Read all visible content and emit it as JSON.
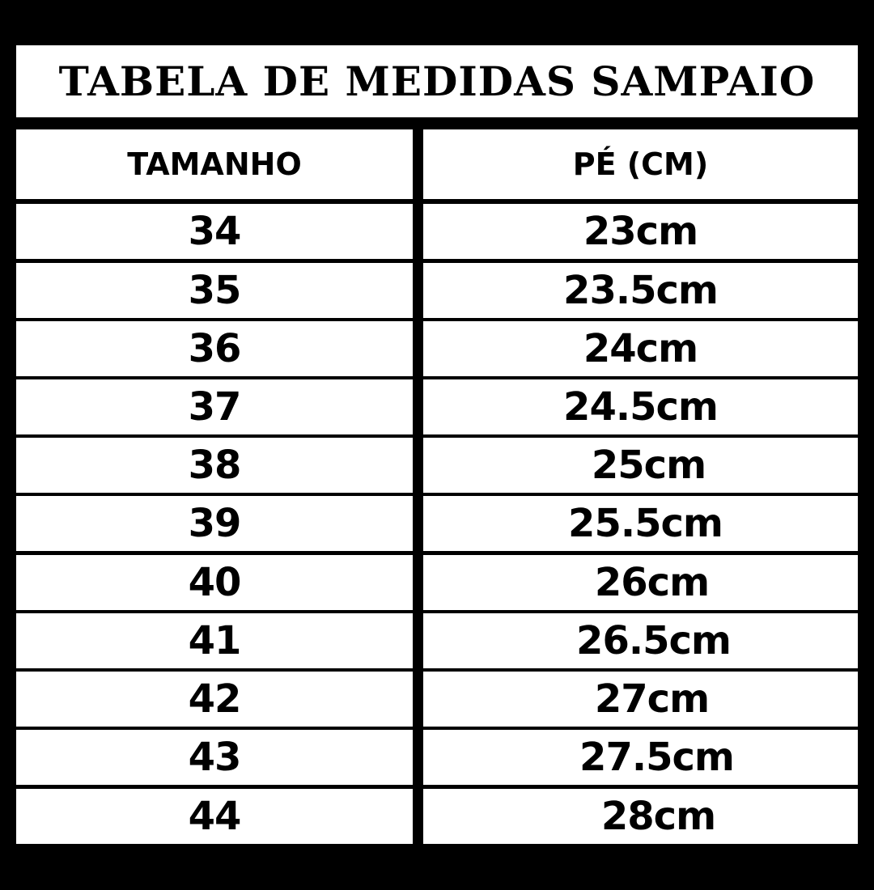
{
  "title": "TABELA DE MEDIDAS SAMPAIO",
  "columns": [
    "TAMANHO",
    "PÉ (CM)"
  ],
  "rows": [
    {
      "size": "34",
      "foot": "23cm"
    },
    {
      "size": "35",
      "foot": "23.5cm"
    },
    {
      "size": "36",
      "foot": "24cm"
    },
    {
      "size": "37",
      "foot": "24.5cm"
    },
    {
      "size": "38",
      "foot": "25cm"
    },
    {
      "size": "39",
      "foot": "25.5cm"
    },
    {
      "size": "40",
      "foot": "26cm"
    },
    {
      "size": "41",
      "foot": "26.5cm"
    },
    {
      "size": "42",
      "foot": "27cm"
    },
    {
      "size": "43",
      "foot": "27.5cm"
    },
    {
      "size": "44",
      "foot": "28cm"
    }
  ]
}
